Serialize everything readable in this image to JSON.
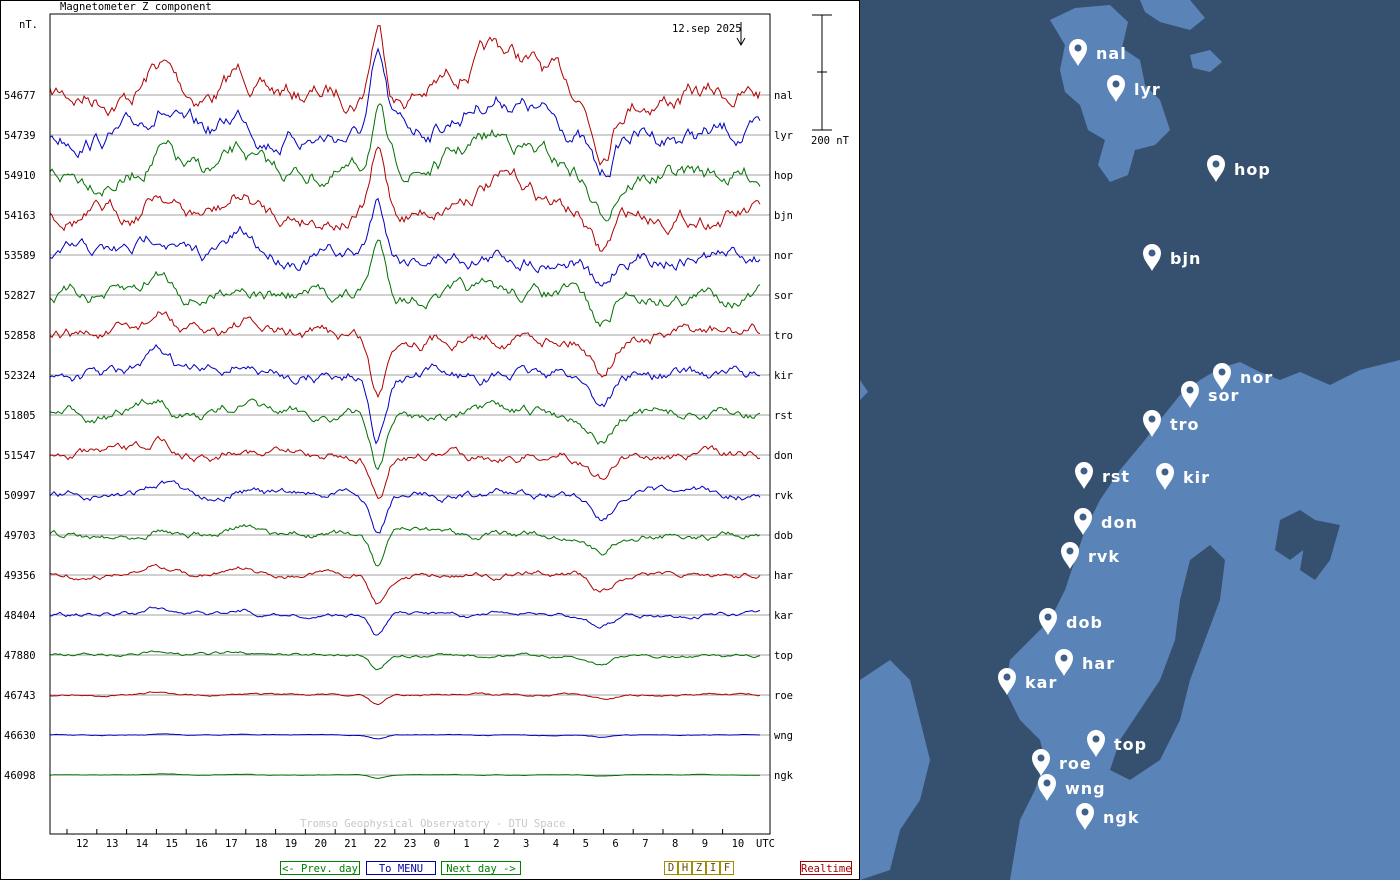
{
  "plot": {
    "title": "Magnetometer Z component",
    "unit_label": "nT.",
    "date_label": "12.sep 2025",
    "scale_label": "200 nT",
    "watermark": "Tromso Geophysical Observatory - DTU Space",
    "x_axis": {
      "hour_labels": [
        "12",
        "13",
        "14",
        "15",
        "16",
        "17",
        "18",
        "19",
        "20",
        "21",
        "22",
        "23",
        "0",
        "1",
        "2",
        "3",
        "4",
        "5",
        "6",
        "7",
        "8",
        "9",
        "10"
      ],
      "unit": "UTC"
    },
    "stations": [
      {
        "code": "nal",
        "baseline": "54677",
        "color": "#b00000"
      },
      {
        "code": "lyr",
        "baseline": "54739",
        "color": "#0000c0"
      },
      {
        "code": "hop",
        "baseline": "54910",
        "color": "#007000"
      },
      {
        "code": "bjn",
        "baseline": "54163",
        "color": "#b00000"
      },
      {
        "code": "nor",
        "baseline": "53589",
        "color": "#0000c0"
      },
      {
        "code": "sor",
        "baseline": "52827",
        "color": "#007000"
      },
      {
        "code": "tro",
        "baseline": "52858",
        "color": "#b00000"
      },
      {
        "code": "kir",
        "baseline": "52324",
        "color": "#0000c0"
      },
      {
        "code": "rst",
        "baseline": "51805",
        "color": "#007000"
      },
      {
        "code": "don",
        "baseline": "51547",
        "color": "#b00000"
      },
      {
        "code": "rvk",
        "baseline": "50997",
        "color": "#0000c0"
      },
      {
        "code": "dob",
        "baseline": "49703",
        "color": "#007000"
      },
      {
        "code": "har",
        "baseline": "49356",
        "color": "#b00000"
      },
      {
        "code": "kar",
        "baseline": "48404",
        "color": "#0000c0"
      },
      {
        "code": "top",
        "baseline": "47880",
        "color": "#007000"
      },
      {
        "code": "roe",
        "baseline": "46743",
        "color": "#b00000"
      },
      {
        "code": "wng",
        "baseline": "46630",
        "color": "#0000c0"
      },
      {
        "code": "ngk",
        "baseline": "46098",
        "color": "#007000"
      }
    ]
  },
  "nav": {
    "prev_day": "<- Prev. day",
    "menu": "To MENU",
    "next_day": "Next day ->",
    "components": [
      "D",
      "H",
      "Z",
      "I",
      "F"
    ],
    "realtime": "Realtime"
  },
  "map": {
    "sea_color": "#365070",
    "land_color": "#5a84b8",
    "pins": [
      "nal",
      "lyr",
      "hop",
      "bjn",
      "nor",
      "sor",
      "tro",
      "rst",
      "kir",
      "don",
      "rvk",
      "dob",
      "har",
      "kar",
      "top",
      "roe",
      "wng",
      "ngk"
    ]
  }
}
